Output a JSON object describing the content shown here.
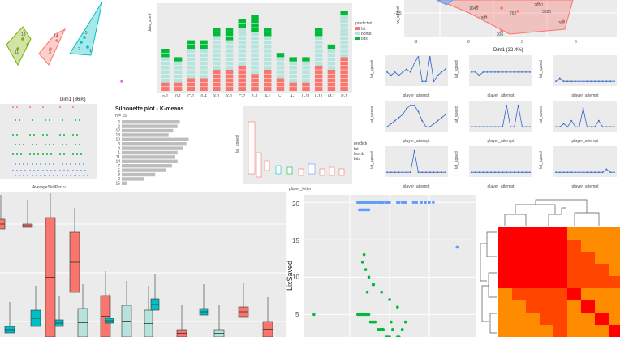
{
  "colors": {
    "red": "#f8766d",
    "green": "#00ba38",
    "blue": "#619cff",
    "teal": "#00bfc4",
    "olive": "#7cae00",
    "pale_teal": "#b8e3dc",
    "gray_bar": "#bdbdbd",
    "heat_red": "#ff0000",
    "heat_orange": "#ff8c00",
    "heat_yellow": "#ffff33",
    "line_blue": "#3366cc"
  },
  "panels": {
    "pca_left": {
      "xlabel": "Dim1 (86%)",
      "cluster_labels": [
        "13",
        "14",
        "15",
        "3",
        "2",
        "11",
        "1"
      ]
    },
    "stacked_bars": {
      "ylabel": "data_used",
      "legend_title": "predicted",
      "legend_items": [
        {
          "label": "fat",
          "color": "#f8766d"
        },
        {
          "label": "bomb",
          "color": "#b8e3dc"
        },
        {
          "label": "bits",
          "color": "#00ba38"
        }
      ],
      "categories": [
        "n-1",
        "0-1",
        "C-1",
        "0-4",
        "X-1",
        "X-1",
        "C-7",
        "1-1",
        "4-1",
        "5-1",
        "A-1",
        "L-11",
        "L-11",
        "M-1",
        "P-1"
      ],
      "totals": [
        10,
        8,
        12,
        12,
        15,
        15,
        17,
        18,
        15,
        9,
        8,
        8,
        15,
        11,
        19
      ]
    },
    "pca_right": {
      "xlabel": "Dim1 (32.4%)",
      "ylabel": "rw_speed",
      "yticks": [
        "-2.5"
      ],
      "xticks": [
        "-3",
        "0",
        "3",
        "6"
      ],
      "point_labels": [
        "1045",
        "2620",
        "1881",
        "762",
        "397",
        "936",
        "3625"
      ]
    },
    "small_lines": {
      "xlabel": "player_attempt",
      "ylabels": [
        "lat_speed",
        "lat_speed",
        "lat_speed",
        "lat_speed",
        "lat_speed",
        "lat_speed",
        "lat_speed",
        "lat_speed",
        "lat_speed"
      ]
    },
    "scatter_small": {
      "xlabel": "AverageSkillPerLv"
    },
    "silhouette": {
      "title": "Silhouette plot - K-means",
      "subtitle": "n = 15",
      "row_labels": [
        "6",
        "2",
        "12",
        "13",
        "10",
        "3",
        "4",
        "1",
        "11",
        "14",
        "7",
        "5",
        "8",
        "9",
        "15"
      ]
    },
    "small_boxes": {
      "xlabel": "player_letter",
      "ylabel": "lat_speed",
      "legend_title": "predicted",
      "legend_items": [
        "fat",
        "bomb",
        "bits"
      ]
    },
    "dot_scatter": {
      "ylabel": "LixSaved",
      "yticks": [
        "5",
        "10",
        "15",
        "20"
      ]
    }
  },
  "chart_data": [
    {
      "type": "scatter",
      "description_key": "pca_left",
      "xlabel": "Dim1 (86%)",
      "series": [
        {
          "name": "",
          "color": "#7cae00",
          "x": [
            -3.4,
            -3.0,
            -2.6,
            -2.2
          ],
          "y": [
            0.5,
            1.2,
            0.2,
            1.0
          ]
        },
        {
          "name": "",
          "color": "#f8766d",
          "x": [
            -0.6,
            0.2,
            0.6
          ],
          "y": [
            0.4,
            1.0,
            1.6
          ]
        },
        {
          "name": "",
          "color": "#00bfc4",
          "x": [
            1.8,
            2.4,
            3.0,
            2.2
          ],
          "y": [
            0.6,
            1.2,
            3.6,
            0.5
          ]
        }
      ]
    },
    {
      "type": "bar",
      "description_key": "stacked_bars",
      "categories": [
        "n-1",
        "0-1",
        "C-1",
        "0-4",
        "X-1",
        "X-1",
        "C-7",
        "1-1",
        "4-1",
        "5-1",
        "A-1",
        "L-11",
        "L-11",
        "M-1",
        "P-1"
      ],
      "ylabel": "data_used",
      "series": [
        {
          "name": "fat",
          "values": [
            2,
            2,
            3,
            3,
            5,
            5,
            6,
            4,
            5,
            3,
            2,
            2,
            6,
            5,
            8
          ]
        },
        {
          "name": "bomb",
          "values": [
            6,
            5,
            7,
            7,
            8,
            7,
            9,
            10,
            8,
            5,
            5,
            5,
            7,
            5,
            10
          ]
        },
        {
          "name": "bits",
          "values": [
            2,
            1,
            2,
            2,
            2,
            3,
            2,
            4,
            2,
            1,
            1,
            1,
            2,
            1,
            1
          ]
        }
      ]
    },
    {
      "type": "bar",
      "description_key": "silhouette",
      "categories": [
        "6",
        "2",
        "12",
        "13",
        "10",
        "3",
        "4",
        "1",
        "11",
        "14",
        "7",
        "5",
        "8",
        "9",
        "15"
      ],
      "values": [
        0.52,
        0.5,
        0.46,
        0.42,
        0.6,
        0.58,
        0.55,
        0.5,
        0.48,
        0.5,
        0.45,
        0.4,
        0.3,
        0.2,
        0.05
      ],
      "xlim": [
        0,
        0.8
      ]
    },
    {
      "type": "scatter",
      "description_key": "dot_scatter",
      "ylabel": "LixSaved",
      "ylim": [
        2,
        21
      ],
      "series": [
        {
          "name": "",
          "color": "#619cff",
          "x": [
            60,
            62,
            64,
            66,
            68,
            70,
            72,
            74,
            76,
            78,
            80,
            82,
            86,
            88,
            90,
            92,
            96,
            98,
            100,
            110,
            112,
            116,
            118,
            120,
            130,
            134,
            140,
            145,
            150,
            155,
            185,
            62,
            64,
            66,
            68,
            70,
            72,
            74
          ],
          "y": [
            20,
            20,
            20,
            20,
            20,
            20,
            20,
            20,
            20,
            20,
            20,
            20,
            20,
            20,
            20,
            20,
            20,
            20,
            20,
            20,
            20,
            20,
            20,
            20,
            20,
            20,
            20,
            20,
            20,
            20,
            14,
            19,
            19,
            19,
            19,
            19,
            19,
            19
          ]
        },
        {
          "name": "",
          "color": "#00ba38",
          "x": [
            5,
            60,
            62,
            64,
            66,
            68,
            70,
            72,
            74,
            76,
            78,
            80,
            82,
            86,
            88,
            90,
            92,
            96,
            98,
            100,
            102,
            104,
            110,
            112,
            116,
            120,
            66,
            70,
            74,
            80,
            90,
            100,
            110,
            68,
            72
          ],
          "y": [
            5,
            5,
            5,
            5,
            5,
            5,
            5,
            5,
            5,
            4,
            4,
            4,
            4,
            3,
            3,
            3,
            3,
            2,
            2,
            2,
            4,
            3,
            2,
            2,
            3,
            4,
            12,
            11,
            10,
            9,
            8,
            7,
            6,
            13,
            8
          ]
        }
      ]
    },
    {
      "type": "heatmap",
      "description_key": "heatmap",
      "rows": 9,
      "cols": 9
    }
  ]
}
